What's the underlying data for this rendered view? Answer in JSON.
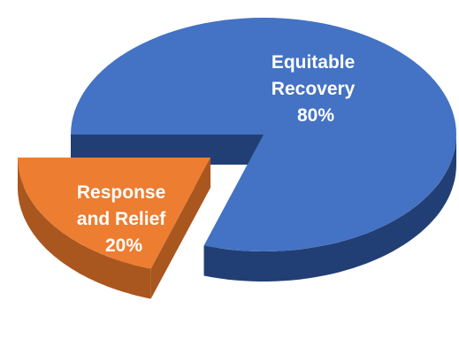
{
  "chart_data": {
    "type": "pie",
    "style": "3d-exploded",
    "slices": [
      {
        "name": "Equitable Recovery",
        "value": 80,
        "label_lines": [
          "Equitable",
          "Recovery",
          "80%"
        ],
        "color": "#4472C4",
        "side_color": "#223F75"
      },
      {
        "name": "Response and Relief",
        "value": 20,
        "label_lines": [
          "Response",
          "and Relief",
          "20%"
        ],
        "color": "#ED7D31",
        "side_color": "#AA561F"
      }
    ]
  }
}
